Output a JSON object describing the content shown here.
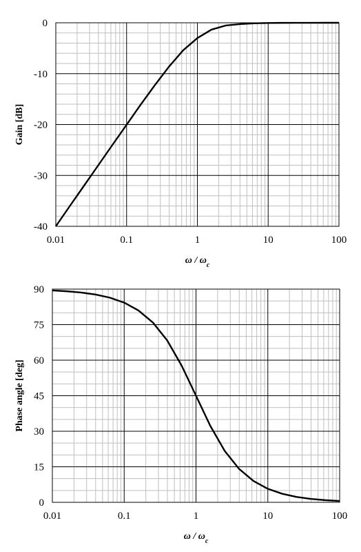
{
  "chart_data": [
    {
      "type": "line",
      "xscale": "log",
      "xlim": [
        0.01,
        100
      ],
      "ylim": [
        -40,
        0
      ],
      "x_ticks": [
        "0.01",
        "0.1",
        "1",
        "10",
        "100"
      ],
      "y_ticks": [
        "-40",
        "-30",
        "-20",
        "-10",
        "0"
      ],
      "xlabel": "ω / ωc",
      "xlabel_main": "ω / ω",
      "xlabel_sub": "c",
      "ylabel": "Gain [dB]",
      "grid": true,
      "series": [
        {
          "x": [
            0.01,
            0.0158,
            0.0251,
            0.0398,
            0.0631,
            0.1,
            0.158,
            0.251,
            0.398,
            0.631,
            1,
            1.58,
            2.51,
            3.98,
            6.31,
            10,
            15.8,
            25.1,
            39.8,
            63.1,
            100
          ],
          "y": [
            -40,
            -36,
            -32,
            -28,
            -24,
            -20.04,
            -16.1,
            -12.25,
            -8.6,
            -5.4,
            -3.01,
            -1.35,
            -0.54,
            -0.26,
            -0.11,
            -0.04,
            -0.017,
            -0.007,
            -0.003,
            -0.001,
            0
          ],
          "color": "#000000"
        }
      ]
    },
    {
      "type": "line",
      "xscale": "log",
      "xlim": [
        0.01,
        100
      ],
      "ylim": [
        0,
        90
      ],
      "x_ticks": [
        "0.01",
        "0.1",
        "1",
        "10",
        "100"
      ],
      "y_ticks": [
        "0",
        "15",
        "30",
        "45",
        "60",
        "75",
        "90"
      ],
      "xlabel": "ω / ωc",
      "xlabel_main": "ω / ω",
      "xlabel_sub": "c",
      "ylabel": "Phase angle  [deg]",
      "grid": true,
      "series": [
        {
          "x": [
            0.01,
            0.0158,
            0.0251,
            0.0398,
            0.0631,
            0.1,
            0.158,
            0.251,
            0.398,
            0.631,
            1,
            1.58,
            2.51,
            3.98,
            6.31,
            10,
            15.8,
            25.1,
            39.8,
            63.1,
            100
          ],
          "y": [
            89.43,
            89.09,
            88.56,
            87.72,
            86.39,
            84.29,
            81.0,
            75.9,
            68.3,
            57.7,
            45.0,
            32.3,
            21.7,
            14.1,
            9.0,
            5.71,
            3.62,
            2.28,
            1.44,
            0.91,
            0.57
          ],
          "color": "#000000"
        }
      ]
    }
  ]
}
